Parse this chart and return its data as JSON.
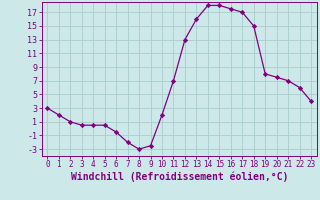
{
  "x": [
    0,
    1,
    2,
    3,
    4,
    5,
    6,
    7,
    8,
    9,
    10,
    11,
    12,
    13,
    14,
    15,
    16,
    17,
    18,
    19,
    20,
    21,
    22,
    23
  ],
  "y": [
    3,
    2,
    1,
    0.5,
    0.5,
    0.5,
    -0.5,
    -2,
    -3,
    -2.5,
    2,
    7,
    13,
    16,
    18,
    18,
    17.5,
    17,
    15,
    8,
    7.5,
    7,
    6,
    4
  ],
  "line_color": "#800080",
  "marker": "D",
  "marker_size": 2.2,
  "bg_color": "#cce8e8",
  "grid_color": "#aacccc",
  "xlabel": "Windchill (Refroidissement éolien,°C)",
  "xlabel_fontsize": 7,
  "ylabel_ticks": [
    -3,
    -1,
    1,
    3,
    5,
    7,
    9,
    11,
    13,
    15,
    17
  ],
  "ylim": [
    -4,
    18.5
  ],
  "xlim": [
    -0.5,
    23.5
  ],
  "xticks": [
    0,
    1,
    2,
    3,
    4,
    5,
    6,
    7,
    8,
    9,
    10,
    11,
    12,
    13,
    14,
    15,
    16,
    17,
    18,
    19,
    20,
    21,
    22,
    23
  ],
  "ytick_fontsize": 6.0,
  "xtick_fontsize": 5.5
}
